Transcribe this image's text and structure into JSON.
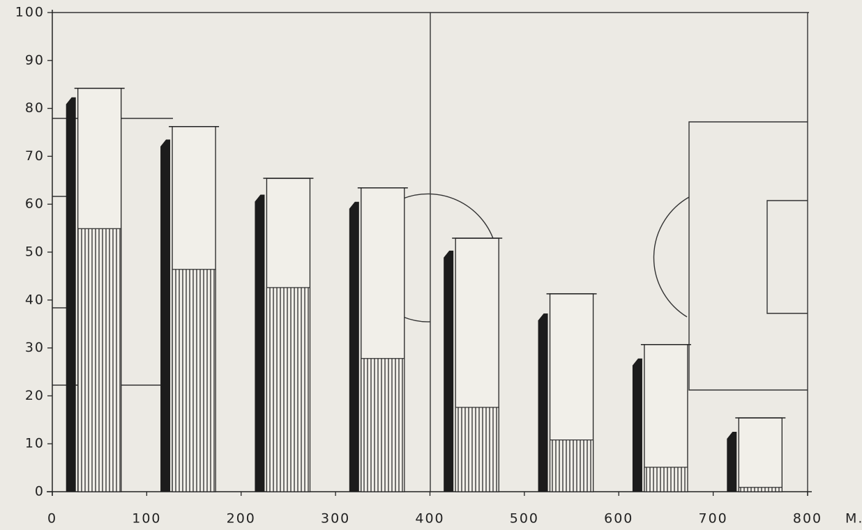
{
  "chart_data": {
    "type": "bar",
    "x_label": "M.",
    "x": [
      50,
      150,
      250,
      350,
      450,
      550,
      650,
      750
    ],
    "series": [
      {
        "color": "#1c1c1c",
        "values": [
          82.3,
          73.5,
          62.0,
          60.5,
          50.3,
          37.2,
          27.8,
          12.5
        ]
      },
      {
        "color": "#f1efe9",
        "values": [
          84.2,
          76.2,
          65.4,
          63.4,
          52.9,
          41.3,
          30.7,
          15.4
        ]
      },
      {
        "color": "#2a2a2a",
        "values": [
          54.9,
          46.4,
          42.6,
          27.8,
          17.6,
          10.8,
          5.1,
          0.9
        ]
      }
    ],
    "xlim": [
      0,
      800
    ],
    "ylim": [
      0,
      100
    ],
    "xticks": [
      0,
      100,
      200,
      300,
      400,
      500,
      600,
      700,
      800
    ],
    "yticks": [
      0,
      10,
      20,
      30,
      40,
      50,
      60,
      70,
      80,
      90,
      100
    ]
  }
}
